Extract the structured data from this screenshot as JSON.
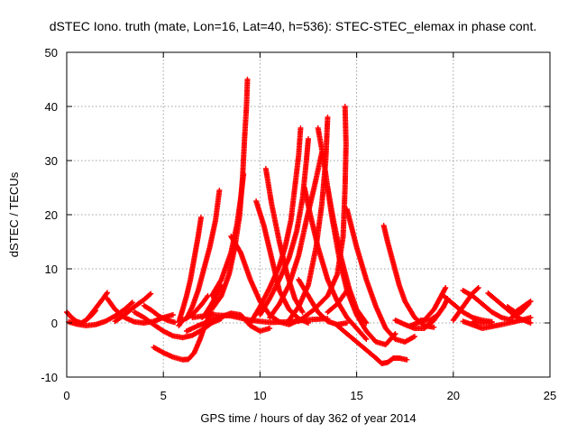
{
  "chart_data": {
    "type": "scatter",
    "title": "dSTEC Iono. truth (mate, Lon=16, Lat=40, h=536): STEC-STEC_elemax in phase cont.",
    "xlabel": "GPS time / hours of day 362 of year 2014",
    "ylabel": "dSTEC  / TECUs",
    "xlim": [
      0,
      25
    ],
    "ylim": [
      -10,
      50
    ],
    "xticks": [
      "0",
      "5",
      "10",
      "15",
      "20",
      "25"
    ],
    "yticks": [
      "-10",
      "0",
      "10",
      "20",
      "30",
      "40",
      "50"
    ],
    "grid": true,
    "marker": "plus",
    "color": "#ff0000",
    "series": [
      {
        "points": [
          [
            0,
            2.0
          ],
          [
            0.25,
            1.0
          ],
          [
            0.5,
            0.3
          ],
          [
            0.75,
            0.0
          ],
          [
            1.0,
            0.5
          ],
          [
            1.25,
            1.3
          ],
          [
            1.5,
            2.3
          ]
        ]
      },
      {
        "points": [
          [
            0.1,
            0.2
          ],
          [
            0.5,
            -0.2
          ],
          [
            1.0,
            -0.5
          ],
          [
            1.5,
            -0.3
          ],
          [
            2.0,
            0.3
          ],
          [
            2.5,
            1.3
          ],
          [
            3.0,
            2.5
          ],
          [
            3.4,
            3.8
          ]
        ]
      },
      {
        "points": [
          [
            1.0,
            0.5
          ],
          [
            1.3,
            1.8
          ],
          [
            1.6,
            3.2
          ],
          [
            1.9,
            4.6
          ],
          [
            2.1,
            5.6
          ]
        ]
      },
      {
        "points": [
          [
            2.1,
            4.5
          ],
          [
            2.5,
            2.5
          ],
          [
            3.0,
            1.0
          ],
          [
            3.5,
            0.2
          ],
          [
            4.0,
            0.0
          ],
          [
            4.5,
            0.3
          ],
          [
            5.0,
            1.0
          ],
          [
            5.5,
            1.5
          ]
        ]
      },
      {
        "points": [
          [
            2.5,
            0.3
          ],
          [
            3.0,
            1.5
          ],
          [
            3.5,
            3.0
          ],
          [
            4.0,
            4.3
          ],
          [
            4.35,
            5.4
          ]
        ]
      },
      {
        "points": [
          [
            4.0,
            3.2
          ],
          [
            4.4,
            2.3
          ],
          [
            4.8,
            1.2
          ],
          [
            5.2,
            0.5
          ],
          [
            5.6,
            0.1
          ]
        ]
      },
      {
        "points": [
          [
            4.5,
            -4.5
          ],
          [
            5.0,
            -5.5
          ],
          [
            5.5,
            -6.3
          ],
          [
            6.0,
            -6.8
          ],
          [
            6.3,
            -6.7
          ],
          [
            6.6,
            -5.5
          ],
          [
            6.9,
            -3.0
          ],
          [
            7.2,
            0.0
          ],
          [
            7.5,
            2.0
          ]
        ]
      },
      {
        "points": [
          [
            3.5,
            2.0
          ],
          [
            4.0,
            1.0
          ],
          [
            4.5,
            -0.3
          ],
          [
            5.0,
            -1.5
          ],
          [
            5.5,
            -2.4
          ],
          [
            6.0,
            -2.7
          ],
          [
            6.5,
            -2.3
          ],
          [
            7.0,
            -1.3
          ],
          [
            7.5,
            0.0
          ],
          [
            8.0,
            0.8
          ]
        ]
      },
      {
        "points": [
          [
            5.8,
            0.2
          ],
          [
            6.0,
            2.5
          ],
          [
            6.2,
            5.0
          ],
          [
            6.4,
            8.0
          ],
          [
            6.6,
            12.0
          ],
          [
            6.8,
            16.0
          ],
          [
            6.95,
            19.5
          ]
        ]
      },
      {
        "points": [
          [
            5.8,
            -0.5
          ],
          [
            6.0,
            0.5
          ],
          [
            6.5,
            1.5
          ],
          [
            7.0,
            3.5
          ],
          [
            7.3,
            5.0
          ]
        ]
      },
      {
        "points": [
          [
            6.2,
            0.8
          ],
          [
            6.5,
            3.0
          ],
          [
            6.8,
            6.0
          ],
          [
            7.1,
            10.0
          ],
          [
            7.4,
            14.0
          ],
          [
            7.7,
            19.0
          ],
          [
            7.9,
            24.5
          ]
        ]
      },
      {
        "points": [
          [
            7.0,
            1.0
          ],
          [
            7.5,
            2.5
          ],
          [
            8.0,
            5.0
          ],
          [
            8.4,
            9.0
          ],
          [
            8.7,
            14.0
          ],
          [
            8.95,
            20.0
          ],
          [
            9.1,
            27.0
          ],
          [
            9.2,
            34.0
          ],
          [
            9.3,
            40.0
          ],
          [
            9.35,
            45.0
          ]
        ]
      },
      {
        "points": [
          [
            7.5,
            5.0
          ],
          [
            8.0,
            8.0
          ],
          [
            8.5,
            13.0
          ],
          [
            8.8,
            18.0
          ],
          [
            9.0,
            23.0
          ],
          [
            9.15,
            27.5
          ]
        ]
      },
      {
        "points": [
          [
            6.5,
            1.0
          ],
          [
            7.5,
            1.5
          ],
          [
            8.5,
            1.3
          ],
          [
            9.5,
            0.5
          ],
          [
            10.5,
            0.1
          ],
          [
            11.5,
            0.2
          ],
          [
            12.5,
            0.6
          ],
          [
            13.5,
            0.8
          ]
        ]
      },
      {
        "points": [
          [
            7.2,
            1.8
          ],
          [
            7.5,
            3.5
          ],
          [
            7.8,
            5.5
          ],
          [
            8.0,
            7.0
          ]
        ]
      },
      {
        "points": [
          [
            6.2,
            -1.5
          ],
          [
            6.8,
            -0.5
          ],
          [
            7.5,
            0.5
          ],
          [
            8.5,
            1.8
          ],
          [
            9.0,
            1.5
          ],
          [
            9.5,
            -0.5
          ],
          [
            10.0,
            -1.5
          ],
          [
            10.5,
            -1.0
          ]
        ]
      },
      {
        "points": [
          [
            8.5,
            16.0
          ],
          [
            9.0,
            13.0
          ],
          [
            9.5,
            8.0
          ],
          [
            10.0,
            4.0
          ],
          [
            10.5,
            1.5
          ],
          [
            11.0,
            0.2
          ],
          [
            11.5,
            -0.3
          ],
          [
            12.0,
            0.5
          ]
        ]
      },
      {
        "points": [
          [
            9.8,
            22.5
          ],
          [
            10.2,
            18.0
          ],
          [
            10.6,
            12.0
          ],
          [
            11.0,
            6.0
          ],
          [
            11.5,
            2.5
          ],
          [
            12.0,
            0.8
          ],
          [
            12.5,
            0.0
          ]
        ]
      },
      {
        "points": [
          [
            10.3,
            28.5
          ],
          [
            10.6,
            22.0
          ],
          [
            11.0,
            15.0
          ],
          [
            11.4,
            9.0
          ],
          [
            11.8,
            4.5
          ],
          [
            12.2,
            2.0
          ]
        ]
      },
      {
        "points": [
          [
            9.5,
            0.0
          ],
          [
            10.0,
            3.0
          ],
          [
            10.5,
            6.5
          ],
          [
            11.0,
            10.5
          ],
          [
            11.3,
            14.0
          ],
          [
            11.6,
            19.0
          ],
          [
            11.8,
            25.0
          ],
          [
            12.0,
            31.0
          ],
          [
            12.1,
            36.0
          ]
        ]
      },
      {
        "points": [
          [
            10.0,
            1.5
          ],
          [
            10.5,
            4.5
          ],
          [
            11.0,
            8.0
          ],
          [
            11.5,
            12.0
          ],
          [
            11.9,
            17.0
          ],
          [
            12.2,
            23.0
          ],
          [
            12.4,
            30.0
          ],
          [
            12.5,
            34.0
          ]
        ]
      },
      {
        "points": [
          [
            10.5,
            1.0
          ],
          [
            11.0,
            3.5
          ],
          [
            11.5,
            7.0
          ],
          [
            12.0,
            12.5
          ],
          [
            12.4,
            19.0
          ],
          [
            12.8,
            25.0
          ],
          [
            13.2,
            31.5
          ]
        ]
      },
      {
        "points": [
          [
            11.5,
            0.5
          ],
          [
            12.0,
            3.0
          ],
          [
            12.5,
            7.0
          ],
          [
            12.9,
            14.0
          ],
          [
            13.2,
            22.0
          ],
          [
            13.4,
            30.0
          ],
          [
            13.5,
            38.0
          ]
        ]
      },
      {
        "points": [
          [
            13.0,
            36.0
          ],
          [
            13.3,
            30.0
          ],
          [
            13.7,
            20.0
          ],
          [
            14.1,
            12.0
          ],
          [
            14.5,
            6.0
          ],
          [
            15.0,
            1.5
          ],
          [
            15.5,
            -1.5
          ],
          [
            16.0,
            -3.5
          ],
          [
            16.5,
            -4.0
          ],
          [
            17.0,
            -2.0
          ]
        ]
      },
      {
        "points": [
          [
            12.3,
            25.0
          ],
          [
            12.6,
            20.0
          ],
          [
            13.0,
            14.0
          ],
          [
            13.5,
            8.0
          ],
          [
            14.0,
            4.0
          ],
          [
            14.5,
            1.0
          ],
          [
            15.0,
            -1.0
          ],
          [
            15.5,
            -3.0
          ]
        ]
      },
      {
        "points": [
          [
            13.5,
            25.0
          ],
          [
            13.8,
            19.0
          ],
          [
            14.2,
            12.0
          ],
          [
            14.6,
            6.5
          ],
          [
            15.0,
            2.5
          ],
          [
            15.5,
            0.0
          ]
        ]
      },
      {
        "points": [
          [
            12.0,
            8.0
          ],
          [
            12.5,
            5.0
          ],
          [
            13.0,
            2.0
          ],
          [
            13.5,
            0.3
          ],
          [
            14.0,
            -0.3
          ],
          [
            14.5,
            0.0
          ]
        ]
      },
      {
        "points": [
          [
            12.0,
            0.3
          ],
          [
            12.8,
            2.5
          ],
          [
            13.5,
            5.0
          ],
          [
            14.0,
            9.0
          ],
          [
            14.3,
            16.0
          ],
          [
            14.4,
            25.0
          ],
          [
            14.45,
            33.0
          ],
          [
            14.4,
            40.0
          ]
        ]
      },
      {
        "points": [
          [
            14.5,
            21.0
          ],
          [
            15.0,
            14.0
          ],
          [
            15.5,
            8.0
          ],
          [
            16.0,
            3.0
          ],
          [
            16.5,
            -1.0
          ],
          [
            17.0,
            -3.0
          ],
          [
            17.5,
            -3.5
          ],
          [
            18.0,
            -2.5
          ]
        ]
      },
      {
        "points": [
          [
            13.5,
            2.0
          ],
          [
            14.0,
            3.5
          ],
          [
            14.3,
            5.0
          ],
          [
            14.6,
            6.5
          ]
        ]
      },
      {
        "points": [
          [
            14.0,
            -0.5
          ],
          [
            14.5,
            -2.0
          ],
          [
            15.0,
            -3.5
          ],
          [
            15.5,
            -5.0
          ],
          [
            16.0,
            -6.5
          ],
          [
            16.3,
            -7.5
          ],
          [
            16.6,
            -7.3
          ],
          [
            16.9,
            -6.5
          ],
          [
            17.2,
            -6.5
          ],
          [
            17.6,
            -6.8
          ]
        ]
      },
      {
        "points": [
          [
            16.4,
            18.0
          ],
          [
            16.6,
            15.0
          ],
          [
            16.9,
            11.0
          ],
          [
            17.2,
            7.0
          ],
          [
            17.5,
            4.0
          ],
          [
            18.0,
            1.0
          ],
          [
            18.5,
            -0.5
          ],
          [
            19.0,
            -0.8
          ]
        ]
      },
      {
        "points": [
          [
            17.0,
            0.5
          ],
          [
            17.5,
            -0.3
          ],
          [
            18.0,
            -1.0
          ],
          [
            18.5,
            -1.0
          ],
          [
            19.0,
            0.5
          ],
          [
            19.5,
            3.0
          ],
          [
            19.7,
            4.5
          ]
        ]
      },
      {
        "points": [
          [
            17.8,
            -0.5
          ],
          [
            18.5,
            0.5
          ],
          [
            19.0,
            2.5
          ],
          [
            19.3,
            4.5
          ],
          [
            19.6,
            6.5
          ]
        ]
      },
      {
        "points": [
          [
            18.3,
            0.5
          ],
          [
            18.8,
            0.5
          ],
          [
            19.2,
            1.5
          ],
          [
            19.5,
            3.0
          ]
        ]
      },
      {
        "points": [
          [
            20.0,
            0.5
          ],
          [
            20.5,
            3.0
          ],
          [
            21.0,
            5.5
          ],
          [
            21.3,
            6.5
          ]
        ]
      },
      {
        "points": [
          [
            20.5,
            6.0
          ],
          [
            21.0,
            5.0
          ],
          [
            21.5,
            3.5
          ],
          [
            22.0,
            2.0
          ],
          [
            22.5,
            1.0
          ],
          [
            23.0,
            0.5
          ]
        ]
      },
      {
        "points": [
          [
            19.5,
            5.0
          ],
          [
            20.0,
            3.5
          ],
          [
            20.5,
            2.0
          ],
          [
            21.0,
            1.0
          ],
          [
            21.5,
            0.5
          ],
          [
            22.0,
            0.2
          ]
        ]
      },
      {
        "points": [
          [
            20.5,
            0.3
          ],
          [
            21.5,
            -1.0
          ],
          [
            22.5,
            -0.3
          ],
          [
            23.5,
            0.5
          ],
          [
            24.0,
            1.0
          ]
        ]
      },
      {
        "points": [
          [
            21.8,
            5.5
          ],
          [
            22.3,
            4.0
          ],
          [
            22.8,
            2.5
          ],
          [
            23.3,
            1.0
          ],
          [
            23.8,
            0.3
          ],
          [
            24.0,
            0.0
          ]
        ]
      },
      {
        "points": [
          [
            22.8,
            3.0
          ],
          [
            23.2,
            2.0
          ],
          [
            23.6,
            3.0
          ],
          [
            24.0,
            4.0
          ]
        ]
      },
      {
        "points": [
          [
            23.0,
            1.0
          ],
          [
            23.5,
            2.0
          ],
          [
            23.9,
            3.5
          ]
        ]
      },
      {
        "points": [
          [
            21.0,
            0.2
          ],
          [
            21.5,
            0.0
          ],
          [
            22.0,
            0.1
          ]
        ]
      }
    ]
  }
}
